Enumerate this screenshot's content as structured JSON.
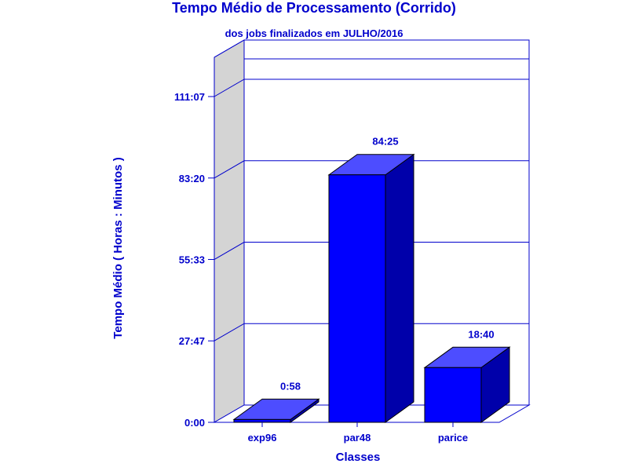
{
  "chart_data": {
    "type": "bar",
    "title": "Tempo Médio de Processamento (Corrido)",
    "subtitle": "dos jobs finalizados em JULHO/2016",
    "xlabel": "Classes",
    "ylabel": "Tempo Médio ( Horas : Minutos )",
    "categories": [
      "exp96",
      "par48",
      "parice"
    ],
    "values": [
      0.967,
      84.417,
      18.667
    ],
    "value_labels": [
      "0:58",
      "84:25",
      "18:40"
    ],
    "y_ticks": [
      0,
      27.783,
      55.55,
      83.333,
      111.117
    ],
    "y_tick_labels": [
      "0:00",
      "27:47",
      "55:33",
      "83:20",
      "111:07"
    ],
    "ylim": [
      0,
      111.117
    ],
    "grid": true,
    "bar_style": "3d"
  },
  "colors": {
    "bar_front": "#0000ff",
    "bar_top": "#4d4dff",
    "bar_side": "#0000aa",
    "text": "#0000cc",
    "axis": "#0000cc",
    "left_wall": "#d4d4d4"
  }
}
